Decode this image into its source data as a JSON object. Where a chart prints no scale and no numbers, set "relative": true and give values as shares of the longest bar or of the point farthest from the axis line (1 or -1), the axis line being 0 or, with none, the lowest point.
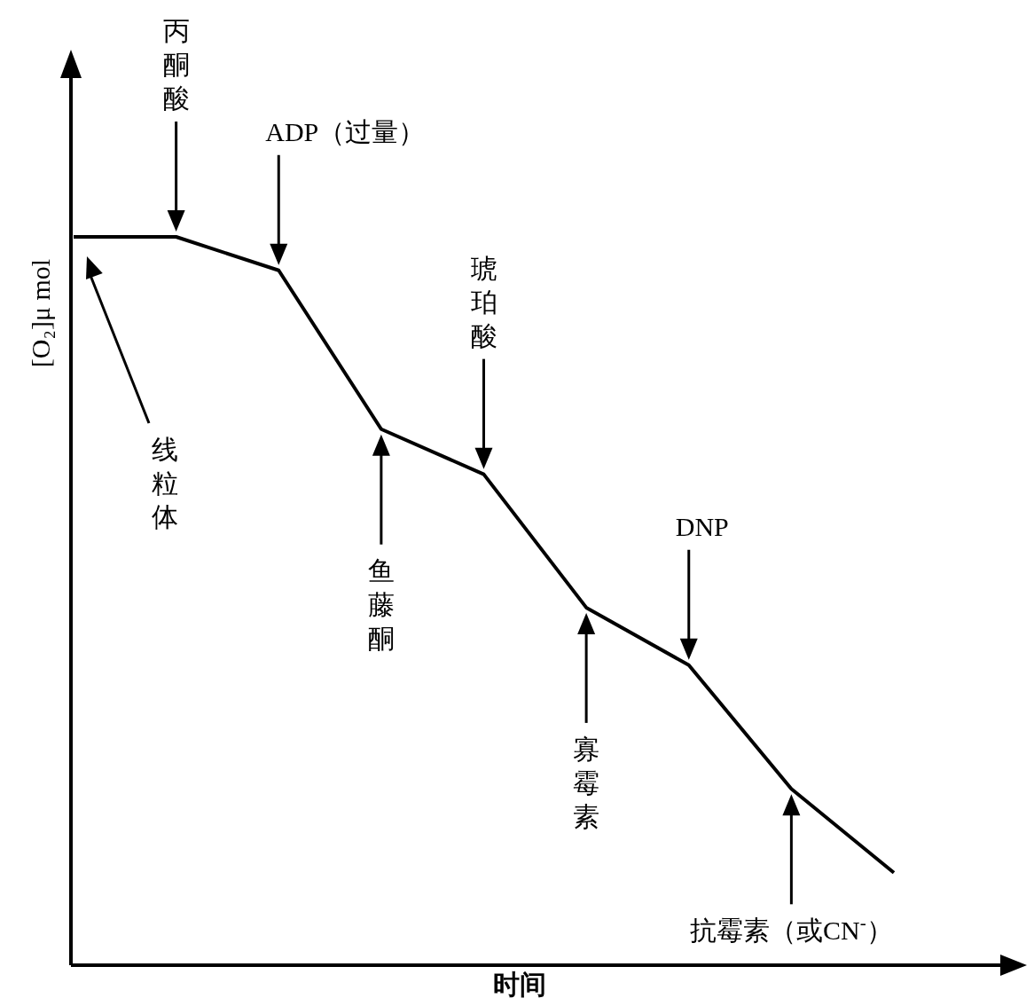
{
  "chart_data": {
    "type": "line",
    "relative": true,
    "xlabel": "时间",
    "ylabel": "[O₂]μ mol",
    "categories": [
      null,
      null,
      null,
      null,
      null,
      null,
      null,
      null,
      null
    ],
    "series": [
      {
        "color": "#000000",
        "values": [
          1,
          1,
          0.954,
          0.736,
          0.674,
          0.491,
          0.412,
          0.242,
          0.127
        ]
      }
    ],
    "annotations": [
      "线粒体",
      "丙酮酸",
      "ADP（过量）",
      "鱼藤酮",
      "琥珀酸",
      "寡霉素",
      "DNP",
      "抗霉素（或CN$^{-}$）"
    ]
  }
}
